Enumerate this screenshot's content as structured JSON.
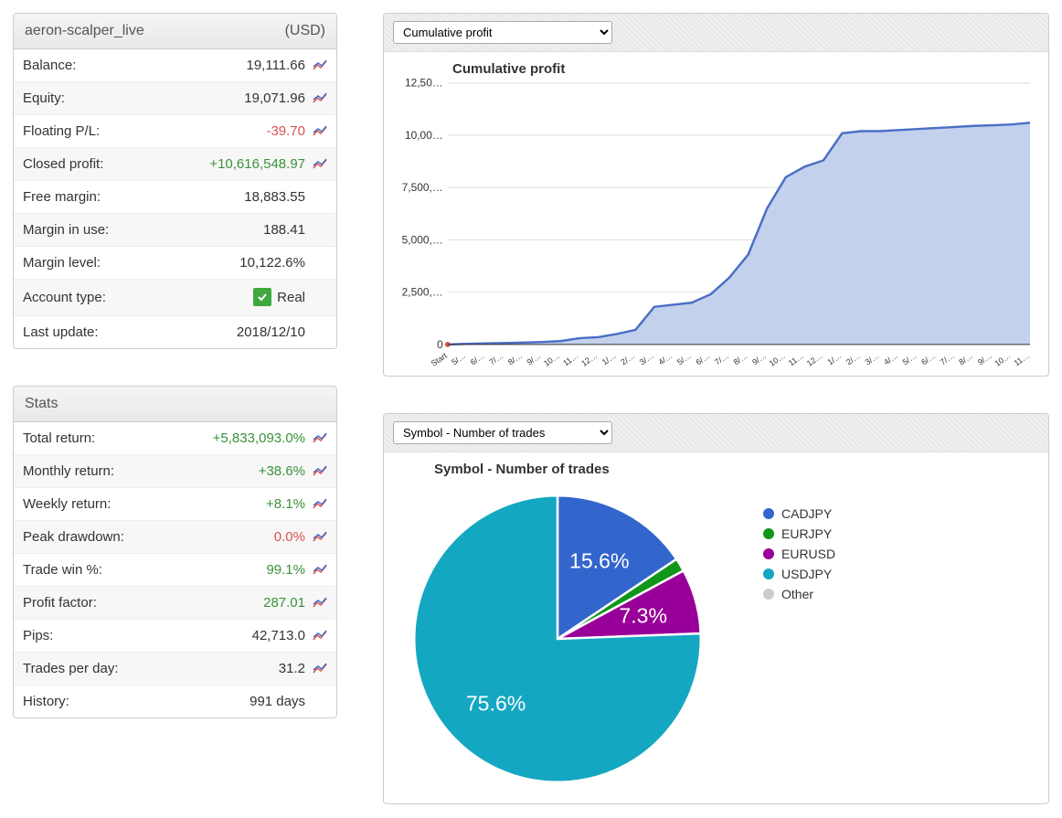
{
  "account": {
    "name": "aeron-scalper_live",
    "currency": "(USD)",
    "rows": [
      {
        "label": "Balance:",
        "value": "19,111.66",
        "class": "",
        "icon": true
      },
      {
        "label": "Equity:",
        "value": "19,071.96",
        "class": "",
        "icon": true
      },
      {
        "label": "Floating P/L:",
        "value": "-39.70",
        "class": "neg",
        "icon": true
      },
      {
        "label": "Closed profit:",
        "value": "+10,616,548.97",
        "class": "pos",
        "icon": true
      },
      {
        "label": "Free margin:",
        "value": "18,883.55",
        "class": "",
        "icon": false
      },
      {
        "label": "Margin in use:",
        "value": "188.41",
        "class": "",
        "icon": false
      },
      {
        "label": "Margin level:",
        "value": "10,122.6%",
        "class": "",
        "icon": false
      },
      {
        "label": "Account type:",
        "value": "Real",
        "class": "",
        "icon": false,
        "badge": true
      },
      {
        "label": "Last update:",
        "value": "2018/12/10",
        "class": "",
        "icon": false
      }
    ]
  },
  "stats": {
    "title": "Stats",
    "rows": [
      {
        "label": "Total return:",
        "value": "+5,833,093.0%",
        "class": "pos",
        "icon": true
      },
      {
        "label": "Monthly return:",
        "value": "+38.6%",
        "class": "pos",
        "icon": true
      },
      {
        "label": "Weekly return:",
        "value": "+8.1%",
        "class": "pos",
        "icon": true
      },
      {
        "label": "Peak drawdown:",
        "value": "0.0%",
        "class": "neg",
        "icon": true
      },
      {
        "label": "Trade win %:",
        "value": "99.1%",
        "class": "pos",
        "icon": true
      },
      {
        "label": "Profit factor:",
        "value": "287.01",
        "class": "pos",
        "icon": true
      },
      {
        "label": "Pips:",
        "value": "42,713.0",
        "class": "",
        "icon": true
      },
      {
        "label": "Trades per day:",
        "value": "31.2",
        "class": "",
        "icon": true
      },
      {
        "label": "History:",
        "value": "991 days",
        "class": "",
        "icon": false
      }
    ]
  },
  "cumulative_chart": {
    "select_label": "Cumulative profit",
    "title": "Cumulative profit",
    "type": "area",
    "ylim": [
      0,
      12500
    ],
    "yticks": [
      0,
      2500,
      5000,
      7500,
      10000,
      12500
    ],
    "ytick_labels": [
      "0",
      "2,500,…",
      "5,000,…",
      "7,500,…",
      "10,00…",
      "12,50…"
    ],
    "line_color": "#4a6fc4",
    "fill_color": "#c3d1ed",
    "marker_color": "#d9534f",
    "background_color": "#ffffff",
    "grid_color": "#dddddd",
    "x_labels": [
      "Start",
      "5/…",
      "6/…",
      "7/…",
      "8/…",
      "9/…",
      "10…",
      "11…",
      "12…",
      "1/…",
      "2/…",
      "3/…",
      "4/…",
      "5/…",
      "6/…",
      "7/…",
      "8/…",
      "9/…",
      "10…",
      "11…",
      "12…",
      "1/…",
      "2/…",
      "3/…",
      "4/…",
      "5/…",
      "6/…",
      "7/…",
      "8/…",
      "9/…",
      "10…",
      "11…"
    ],
    "values": [
      0,
      30,
      50,
      70,
      90,
      120,
      160,
      300,
      350,
      500,
      700,
      1800,
      1900,
      2000,
      2400,
      3200,
      4300,
      6500,
      8000,
      8500,
      8800,
      10100,
      10200,
      10200,
      10250,
      10300,
      10350,
      10400,
      10450,
      10480,
      10520,
      10600
    ]
  },
  "pie_chart": {
    "select_label": "Symbol - Number of trades",
    "title": "Symbol - Number of trades",
    "type": "pie",
    "background_color": "#ffffff",
    "slices": [
      {
        "label": "CADJPY",
        "value": 15.6,
        "color": "#3366cc",
        "show_label": "15.6%"
      },
      {
        "label": "EURJPY",
        "value": 1.5,
        "color": "#109618",
        "show_label": ""
      },
      {
        "label": "EURUSD",
        "value": 7.3,
        "color": "#990099",
        "show_label": "7.3%"
      },
      {
        "label": "USDJPY",
        "value": 75.6,
        "color": "#14a7c2",
        "show_label": "75.6%"
      }
    ],
    "legend_extra": [
      {
        "label": "Other",
        "color": "#cccccc"
      }
    ],
    "label_color": "#ffffff",
    "label_fontsize": 14
  }
}
